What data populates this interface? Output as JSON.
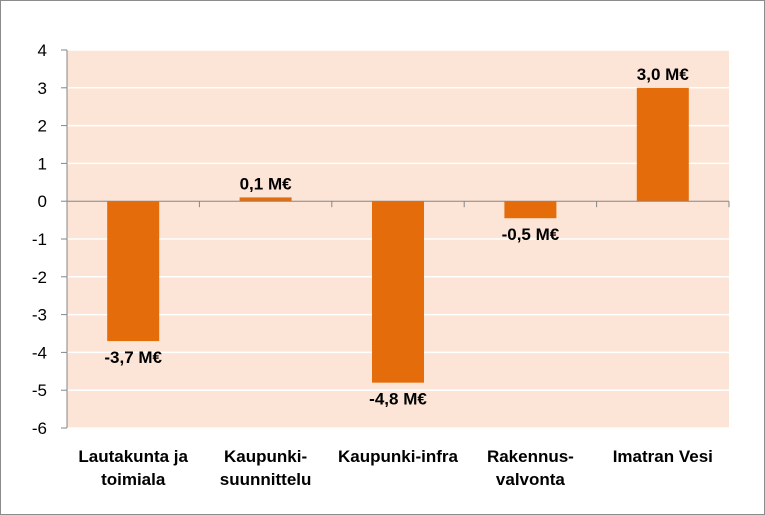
{
  "chart_data": {
    "type": "bar",
    "categories": [
      [
        "Lautakunta ja",
        "toimiala"
      ],
      [
        "Kaupunki-",
        "suunnittelu"
      ],
      [
        "Kaupunki-infra"
      ],
      [
        "Rakennus-",
        "valvonta"
      ],
      [
        "Imatran Vesi"
      ]
    ],
    "values": [
      -3.7,
      0.1,
      -4.8,
      -0.45,
      3.0
    ],
    "data_labels": [
      "-3,7 M€",
      "0,1 M€",
      "-4,8 M€",
      "-0,5 M€",
      "3,0 M€"
    ],
    "ylim": [
      -6,
      4
    ],
    "yticks": [
      4,
      3,
      2,
      1,
      0,
      -1,
      -2,
      -3,
      -4,
      -5,
      -6
    ],
    "grid": true,
    "legend": "none",
    "colors": {
      "bar": "#E46C0A",
      "plot_background": "#FCE4D6",
      "gridline": "#FFFFFF",
      "axis": "#868686"
    }
  }
}
